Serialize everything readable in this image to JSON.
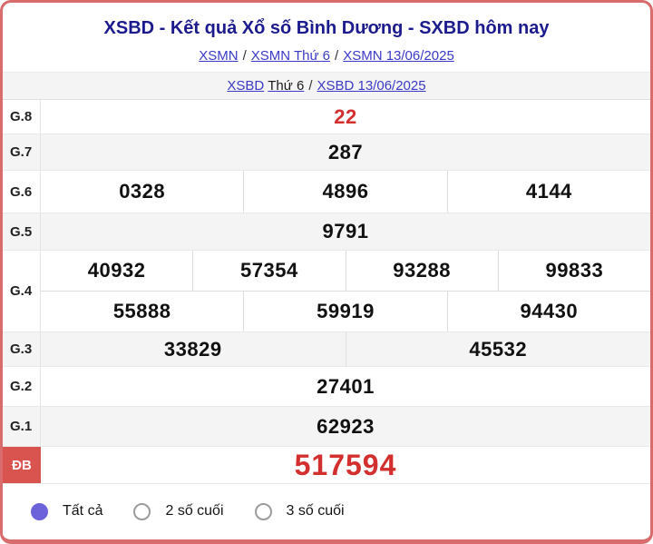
{
  "header": {
    "title": "XSBD - Kết quả Xổ số Bình Dương - SXBD hôm nay",
    "separator": "/",
    "links_xsmn": [
      "XSMN",
      "XSMN Thứ 6",
      "XSMN 13/06/2025"
    ],
    "links_xsbd": {
      "region_link": "XSBD",
      "day_text": "Thứ 6",
      "date_link": "XSBD 13/06/2025"
    }
  },
  "results": {
    "rows": [
      {
        "prize": "G.8",
        "groups": [
          [
            "22"
          ]
        ],
        "highlight": true
      },
      {
        "prize": "G.7",
        "groups": [
          [
            "287"
          ]
        ],
        "highlight": false
      },
      {
        "prize": "G.6",
        "groups": [
          [
            "0328",
            "4896",
            "4144"
          ]
        ],
        "highlight": false
      },
      {
        "prize": "G.5",
        "groups": [
          [
            "9791"
          ]
        ],
        "highlight": false
      },
      {
        "prize": "G.4",
        "groups": [
          [
            "40932",
            "57354",
            "93288",
            "99833"
          ],
          [
            "55888",
            "59919",
            "94430"
          ]
        ],
        "highlight": false
      },
      {
        "prize": "G.3",
        "groups": [
          [
            "33829",
            "45532"
          ]
        ],
        "highlight": false
      },
      {
        "prize": "G.2",
        "groups": [
          [
            "27401"
          ]
        ],
        "highlight": false
      },
      {
        "prize": "G.1",
        "groups": [
          [
            "62923"
          ]
        ],
        "highlight": false
      },
      {
        "prize": "ĐB",
        "groups": [
          [
            "517594"
          ]
        ],
        "highlight": true,
        "jackpot": true
      }
    ]
  },
  "filters": {
    "options": [
      {
        "label": "Tất cả",
        "selected": true
      },
      {
        "label": "2 số cuối",
        "selected": false
      },
      {
        "label": "3 số cuối",
        "selected": false
      }
    ]
  },
  "colors": {
    "border_red": "#d96c6c",
    "badge_red": "#d9534f",
    "number_red": "#d32f2f",
    "title_navy": "#1b1b8e",
    "link_blue": "#3a3ac6",
    "radio_selected": "#6c63da",
    "row_alt_gray": "#f4f4f4"
  }
}
